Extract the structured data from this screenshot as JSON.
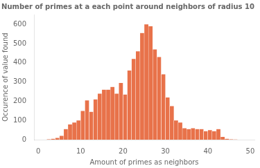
{
  "chart_data": {
    "type": "histogram",
    "title": "Number of primes at a each point around neighbors of radius 10",
    "xlabel": "Amount of primes as neighbors",
    "ylabel": "Occurence of value found",
    "bins": [
      1,
      2,
      3,
      4,
      5,
      6,
      7,
      8,
      9,
      10,
      11,
      12,
      13,
      14,
      15,
      16,
      17,
      18,
      19,
      20,
      21,
      22,
      23,
      24,
      25,
      26,
      27,
      28,
      29,
      30,
      31,
      32,
      33,
      34,
      35,
      36,
      37,
      38,
      39,
      40,
      41,
      42,
      43,
      44,
      45,
      46,
      47,
      48,
      49,
      50
    ],
    "values": [
      0,
      2,
      5,
      10,
      20,
      55,
      80,
      90,
      100,
      150,
      205,
      145,
      210,
      240,
      260,
      260,
      275,
      240,
      295,
      235,
      360,
      420,
      460,
      555,
      600,
      590,
      470,
      430,
      340,
      220,
      175,
      100,
      90,
      60,
      55,
      60,
      55,
      55,
      45,
      50,
      45,
      55,
      15,
      5,
      2,
      1,
      0,
      0,
      0
    ],
    "color": "#E8724A",
    "xlim": [
      -1,
      51
    ],
    "ylim": [
      0,
      650
    ],
    "xticks": [
      0,
      10,
      20,
      30,
      40,
      50
    ],
    "yticks": [
      0,
      100,
      200,
      300,
      400,
      500,
      600
    ],
    "grid": false
  }
}
